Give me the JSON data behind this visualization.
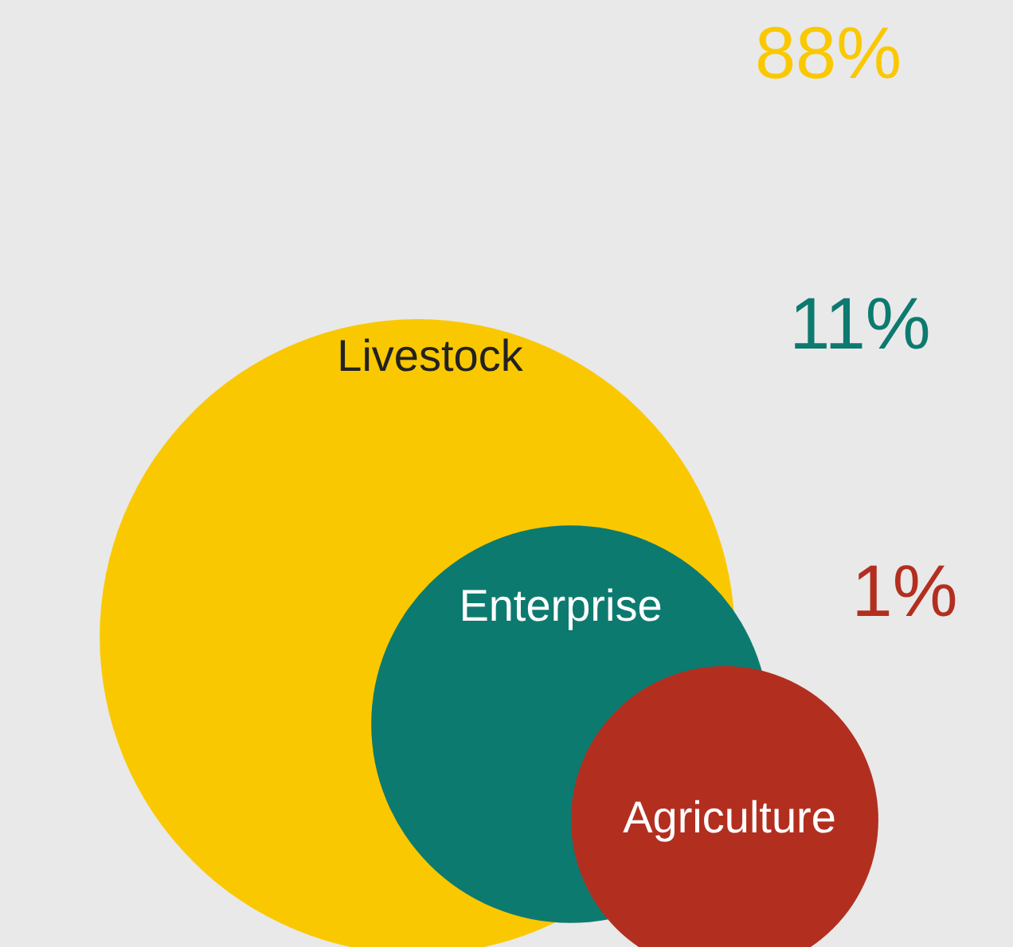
{
  "chart_data": {
    "type": "other",
    "categories": [
      "Livestock",
      "Enterprise",
      "Agriculture"
    ],
    "values": [
      88,
      11,
      1
    ],
    "value_labels": [
      "88%",
      "11%",
      "1%"
    ],
    "colors": [
      "#fac800",
      "#0d7a70",
      "#b22f20"
    ]
  }
}
